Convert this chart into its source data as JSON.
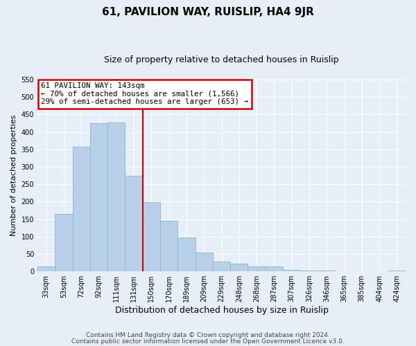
{
  "title": "61, PAVILION WAY, RUISLIP, HA4 9JR",
  "subtitle": "Size of property relative to detached houses in Ruislip",
  "xlabel": "Distribution of detached houses by size in Ruislip",
  "ylabel": "Number of detached properties",
  "categories": [
    "33sqm",
    "53sqm",
    "72sqm",
    "92sqm",
    "111sqm",
    "131sqm",
    "150sqm",
    "170sqm",
    "189sqm",
    "209sqm",
    "229sqm",
    "248sqm",
    "268sqm",
    "287sqm",
    "307sqm",
    "326sqm",
    "346sqm",
    "365sqm",
    "385sqm",
    "404sqm",
    "424sqm"
  ],
  "values": [
    15,
    165,
    358,
    425,
    427,
    275,
    198,
    145,
    97,
    54,
    28,
    22,
    14,
    15,
    4,
    3,
    2,
    1,
    1,
    1,
    2
  ],
  "bar_color": "#b8d0e8",
  "bar_edge_color": "#88b4d4",
  "vline_x_index": 5.5,
  "vline_color": "#cc0000",
  "annotation_text": "61 PAVILION WAY: 143sqm\n← 70% of detached houses are smaller (1,566)\n29% of semi-detached houses are larger (653) →",
  "annotation_box_color": "#ffffff",
  "annotation_box_edge_color": "#cc0000",
  "ylim": [
    0,
    550
  ],
  "yticks": [
    0,
    50,
    100,
    150,
    200,
    250,
    300,
    350,
    400,
    450,
    500,
    550
  ],
  "footnote_line1": "Contains HM Land Registry data © Crown copyright and database right 2024.",
  "footnote_line2": "Contains public sector information licensed under the Open Government Licence v3.0.",
  "title_fontsize": 11,
  "subtitle_fontsize": 9,
  "xlabel_fontsize": 9,
  "ylabel_fontsize": 8,
  "footnote_fontsize": 6.5,
  "tick_fontsize": 7,
  "annotation_fontsize": 7.8,
  "background_color": "#e8eef8",
  "grid_color": "#ffffff"
}
